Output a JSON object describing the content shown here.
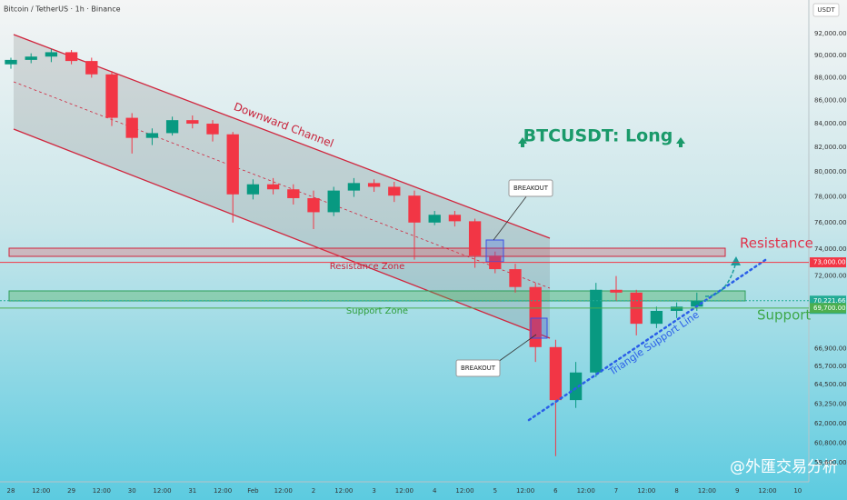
{
  "chart_data": {
    "type": "candlestick",
    "title": "Bitcoin / TetherUS · 1h · Binance",
    "currency": "USDT",
    "log_scale": true,
    "up_color": "#089981",
    "down_color": "#f23645",
    "ylim": [
      59000,
      95200
    ],
    "yticks": [
      {
        "value": 92000,
        "label": "92,000.00"
      },
      {
        "value": 90000,
        "label": "90,000.00"
      },
      {
        "value": 88000,
        "label": "88,000.00"
      },
      {
        "value": 86000,
        "label": "86,000.00"
      },
      {
        "value": 84000,
        "label": "84,000.00"
      },
      {
        "value": 82000,
        "label": "82,000.00"
      },
      {
        "value": 80000,
        "label": "80,000.00"
      },
      {
        "value": 78000,
        "label": "78,000.00"
      },
      {
        "value": 76000,
        "label": "76,000.00"
      },
      {
        "value": 74000,
        "label": "74,000.00"
      },
      {
        "value": 72000,
        "label": "72,000.00"
      },
      {
        "value": 66900,
        "label": "66,900.00"
      },
      {
        "value": 65700,
        "label": "65,700.00"
      },
      {
        "value": 64500,
        "label": "64,500.00"
      },
      {
        "value": 63250,
        "label": "63,250.00"
      },
      {
        "value": 62000,
        "label": "62,000.00"
      },
      {
        "value": 60800,
        "label": "60,800.00"
      },
      {
        "value": 59600,
        "label": "59,600.00"
      }
    ],
    "xtick_labels": [
      "28",
      "12:00",
      "29",
      "12:00",
      "30",
      "12:00",
      "31",
      "12:00",
      "Feb",
      "12:00",
      "2",
      "12:00",
      "3",
      "12:00",
      "4",
      "12:00",
      "5",
      "12:00",
      "6",
      "12:00",
      "7",
      "12:00",
      "8",
      "12:00",
      "9",
      "12:00",
      "10"
    ],
    "candles": {
      "open": [
        89200,
        89600,
        89900,
        90300,
        89500,
        88300,
        84500,
        82800,
        83200,
        84300,
        84000,
        83100,
        78200,
        79000,
        78600,
        77900,
        76800,
        78500,
        79100,
        78800,
        78100,
        76000,
        76600,
        76100,
        73500,
        72500,
        71200,
        67000,
        63500,
        65300,
        71000,
        70800,
        68600,
        69500,
        69800
      ],
      "high": [
        89800,
        90200,
        90600,
        90500,
        89800,
        88600,
        84900,
        83600,
        84600,
        84700,
        84300,
        83300,
        79400,
        79500,
        79000,
        78500,
        78800,
        79500,
        79400,
        79200,
        78500,
        76900,
        76900,
        76300,
        73800,
        72900,
        71500,
        67500,
        66000,
        71500,
        72000,
        71000,
        69800,
        70100,
        70800
      ],
      "low": [
        88800,
        89300,
        89400,
        89200,
        88000,
        83800,
        81500,
        82200,
        83000,
        83600,
        82500,
        76000,
        77800,
        78200,
        77400,
        75500,
        76500,
        78000,
        78400,
        77600,
        73200,
        75800,
        75700,
        72600,
        72200,
        70800,
        66000,
        60000,
        63000,
        65000,
        70200,
        67800,
        68300,
        69000,
        69500
      ],
      "close": [
        89600,
        89900,
        90300,
        89500,
        88300,
        84500,
        82800,
        83200,
        84300,
        84000,
        83100,
        78200,
        79000,
        78600,
        77900,
        76800,
        78500,
        79100,
        78800,
        78100,
        76000,
        76600,
        76100,
        73500,
        72500,
        71200,
        67000,
        63500,
        65300,
        71000,
        70800,
        68600,
        69500,
        69800,
        70200
      ]
    },
    "price_lines": [
      {
        "value": 73000,
        "label": "73,000.00",
        "color": "#f23645"
      },
      {
        "value": 70221.66,
        "label": "70,221.66",
        "countdown": "00:34",
        "color": "#22ab94"
      },
      {
        "value": 69700,
        "label": "69,700.00",
        "color": "#4caf50"
      }
    ],
    "annotations": {
      "channel": "Downward Channel",
      "headline": "BTCUSDT: Long",
      "breakout_top": "BREAKOUT",
      "breakout_bottom": "BREAKOUT",
      "resistance_zone": "Resistance Zone",
      "support_zone": "Support Zone",
      "resistance": "Resistance",
      "support": "Support",
      "triangle": "Triangle Support Line",
      "watermark": "@外匯交易分析"
    }
  }
}
